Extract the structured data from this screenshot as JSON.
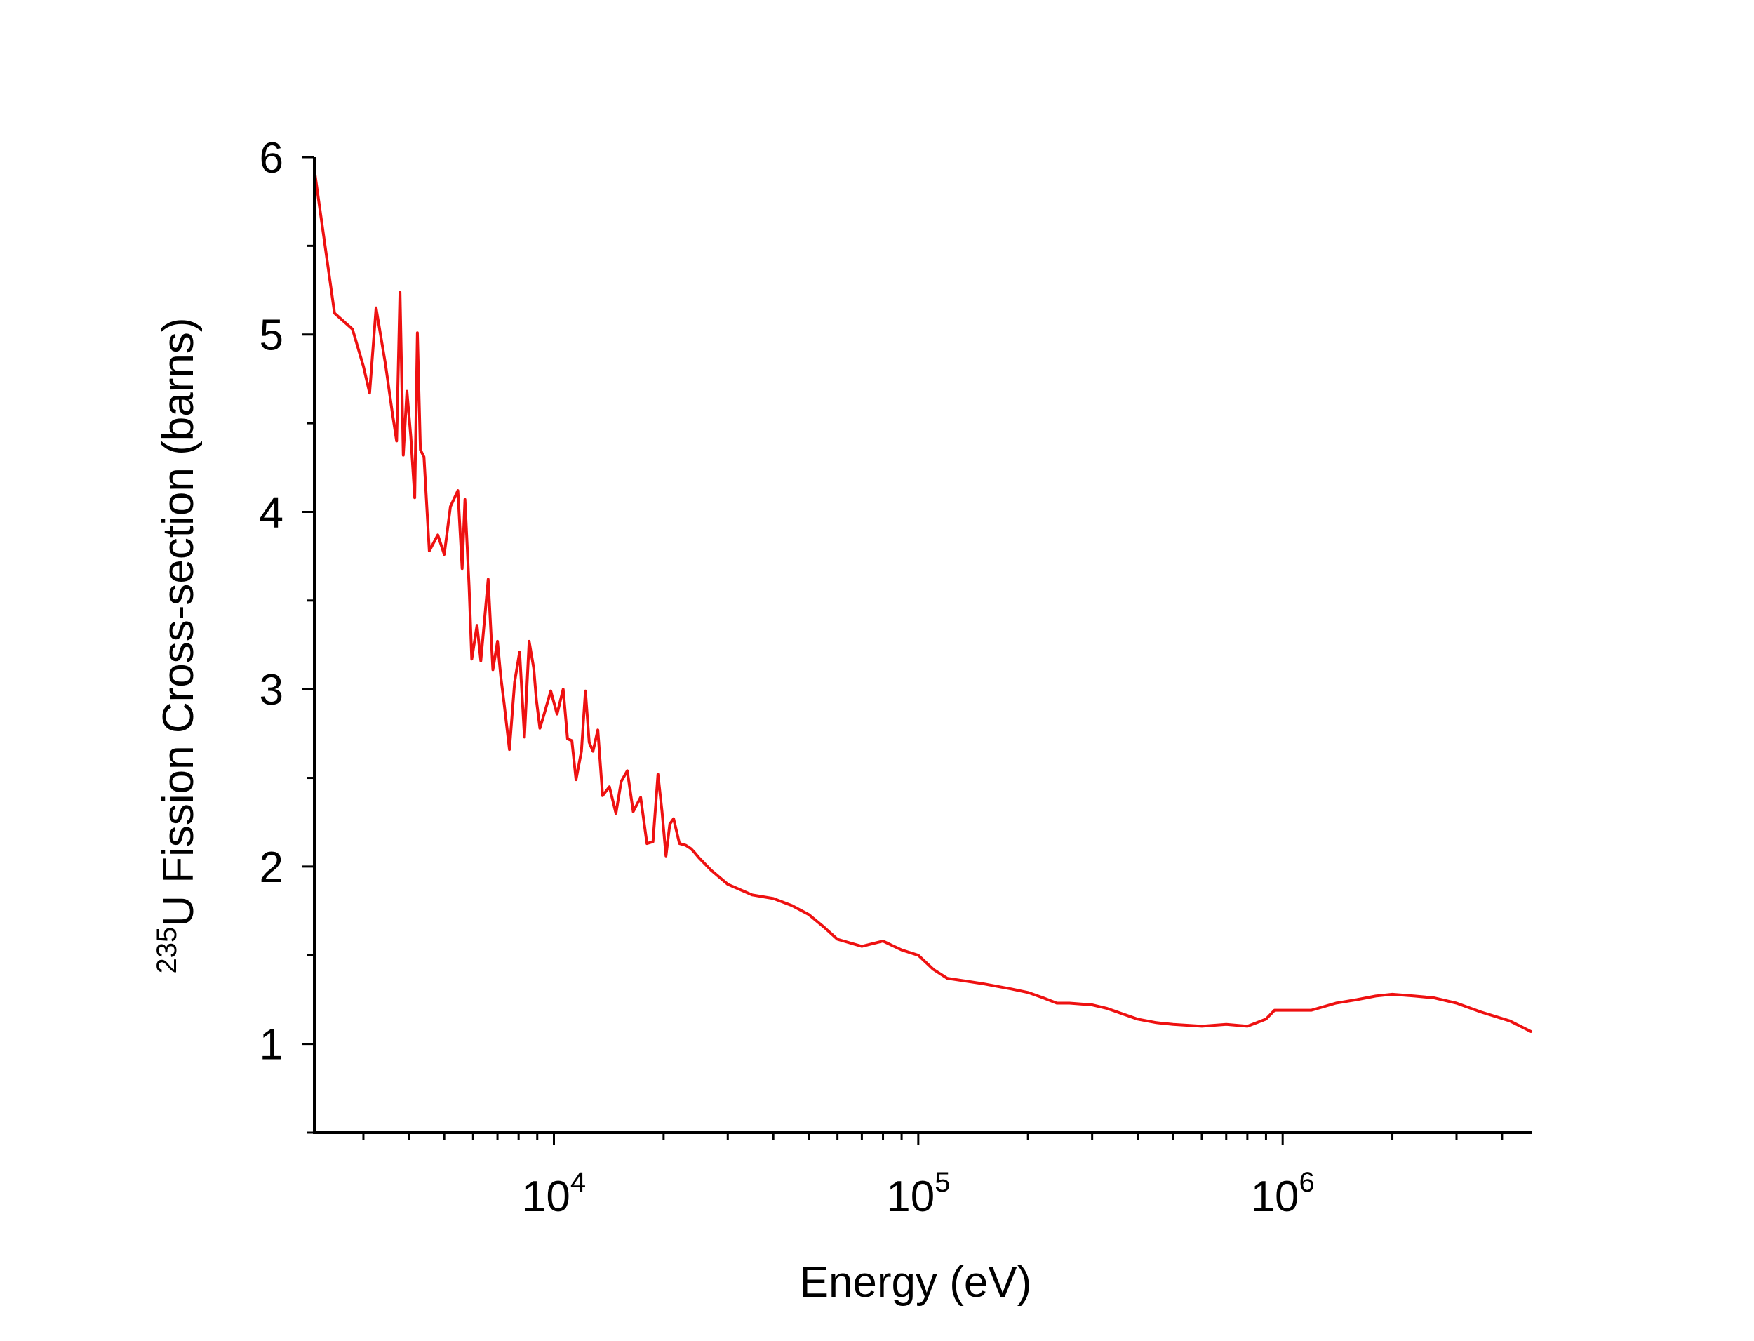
{
  "chart_data": {
    "type": "line",
    "title": "",
    "xlabel": "Energy (eV)",
    "ylabel_superscript": "235",
    "ylabel": "U Fission Cross-section (barns)",
    "x_scale": "log",
    "xlim": [
      2200,
      4800000
    ],
    "ylim": [
      0.5,
      6
    ],
    "x_ticks": [
      {
        "value": 10000,
        "base": "10",
        "exp": "4"
      },
      {
        "value": 100000,
        "base": "10",
        "exp": "5"
      },
      {
        "value": 1000000,
        "base": "10",
        "exp": "6"
      }
    ],
    "y_ticks": [
      {
        "value": 1,
        "label": "1"
      },
      {
        "value": 2,
        "label": "2"
      },
      {
        "value": 3,
        "label": "3"
      },
      {
        "value": 4,
        "label": "4"
      },
      {
        "value": 5,
        "label": "5"
      },
      {
        "value": 6,
        "label": "6"
      }
    ],
    "series": [
      {
        "name": "U-235 fission",
        "color": "#ee1111",
        "x": [
          2200,
          2500,
          2800,
          3000,
          3120,
          3250,
          3450,
          3600,
          3700,
          3780,
          3860,
          3950,
          4050,
          4150,
          4220,
          4300,
          4400,
          4550,
          4800,
          5000,
          5200,
          5450,
          5600,
          5700,
          5850,
          5950,
          6150,
          6300,
          6600,
          6800,
          7000,
          7150,
          7300,
          7550,
          7800,
          8050,
          8300,
          8550,
          8800,
          8950,
          9150,
          9400,
          9800,
          10200,
          10600,
          10900,
          11200,
          11500,
          11900,
          12200,
          12500,
          12800,
          13200,
          13600,
          14200,
          14800,
          15300,
          15900,
          16500,
          17300,
          18000,
          18700,
          19300,
          19800,
          20300,
          20800,
          21300,
          22100,
          23000,
          23800,
          24300,
          25000,
          27000,
          30000,
          35000,
          40000,
          45000,
          50000,
          55000,
          60000,
          70000,
          80000,
          90000,
          100000,
          110000,
          120000,
          150000,
          180000,
          200000,
          220000,
          240000,
          260000,
          300000,
          330000,
          400000,
          450000,
          500000,
          600000,
          700000,
          800000,
          850000,
          900000,
          950000,
          1000000,
          1200000,
          1400000,
          1600000,
          1800000,
          2000000,
          2300000,
          2600000,
          3000000,
          3500000,
          4200000,
          4800000
        ],
        "y": [
          5.93,
          5.12,
          5.03,
          4.82,
          4.67,
          5.15,
          4.83,
          4.56,
          4.4,
          5.24,
          4.32,
          4.68,
          4.42,
          4.08,
          5.01,
          4.35,
          4.31,
          3.78,
          3.87,
          3.76,
          4.03,
          4.12,
          3.68,
          4.07,
          3.58,
          3.17,
          3.36,
          3.16,
          3.62,
          3.11,
          3.27,
          3.07,
          2.92,
          2.66,
          3.04,
          3.21,
          2.73,
          3.27,
          3.12,
          2.94,
          2.78,
          2.86,
          2.99,
          2.86,
          3.0,
          2.72,
          2.71,
          2.49,
          2.65,
          2.99,
          2.7,
          2.65,
          2.77,
          2.4,
          2.45,
          2.3,
          2.48,
          2.54,
          2.31,
          2.39,
          2.13,
          2.14,
          2.52,
          2.31,
          2.06,
          2.24,
          2.27,
          2.13,
          2.12,
          2.1,
          2.08,
          2.05,
          1.98,
          1.9,
          1.84,
          1.82,
          1.78,
          1.73,
          1.66,
          1.59,
          1.55,
          1.58,
          1.53,
          1.5,
          1.42,
          1.37,
          1.34,
          1.31,
          1.29,
          1.26,
          1.23,
          1.23,
          1.22,
          1.2,
          1.14,
          1.12,
          1.11,
          1.1,
          1.11,
          1.1,
          1.12,
          1.14,
          1.19,
          1.19,
          1.19,
          1.23,
          1.25,
          1.27,
          1.28,
          1.27,
          1.26,
          1.23,
          1.18,
          1.13,
          1.07
        ]
      }
    ]
  }
}
